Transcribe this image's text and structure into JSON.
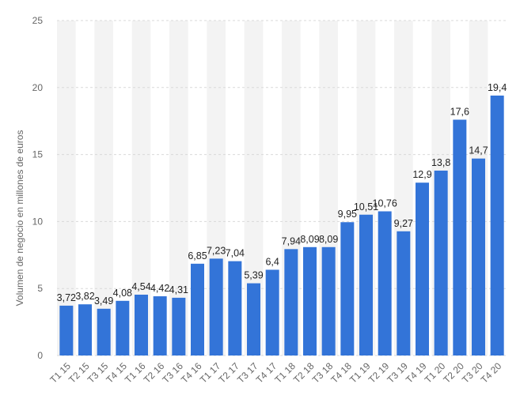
{
  "chart_data": {
    "type": "bar",
    "title": "",
    "xlabel": "",
    "ylabel": "Volumen de negocio en millones de euros",
    "ylim": [
      0,
      25
    ],
    "yticks": [
      0,
      5,
      10,
      15,
      20,
      25
    ],
    "grid": true,
    "legend": "none",
    "bar_color": "#3374d8",
    "band_color": "#f3f3f3",
    "categories": [
      "T1 15",
      "T2 15",
      "T3 15",
      "T4 15",
      "T1 16",
      "T2 16",
      "T3 16",
      "T4 16",
      "T1 17",
      "T2 17",
      "T3 17",
      "T4 17",
      "T1 18",
      "T2 18",
      "T3 18",
      "T4 18",
      "T1 19",
      "T2 19",
      "T3 19",
      "T4 19",
      "T1 20",
      "T2 20",
      "T3 20",
      "T4 20"
    ],
    "values": [
      3.72,
      3.82,
      3.49,
      4.08,
      4.54,
      4.42,
      4.31,
      6.85,
      7.23,
      7.04,
      5.39,
      6.4,
      7.94,
      8.09,
      8.09,
      9.95,
      10.51,
      10.76,
      9.27,
      12.9,
      13.8,
      17.6,
      14.7,
      19.4
    ],
    "value_labels": [
      "3,72",
      "3,82",
      "3,49",
      "4,08",
      "4,54",
      "4,42",
      "4,31",
      "6,85",
      "7,23",
      "7,04",
      "5,39",
      "6,4",
      "7,94",
      "8,09",
      "8,09",
      "9,95",
      "10,51",
      "10,76",
      "9,27",
      "12,9",
      "13,8",
      "17,6",
      "14,7",
      "19,4"
    ]
  }
}
